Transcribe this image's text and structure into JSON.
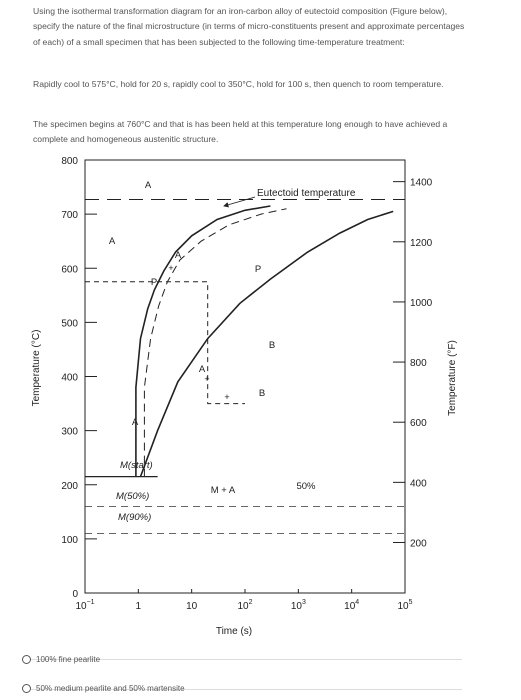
{
  "question": {
    "paragraph1": "Using the isothermal transformation diagram for an iron-carbon alloy of eutectoid composition (Figure below), specify the nature of the final microstructure (in terms of micro-constituents present and approximate percentages of each) of a small specimen that has been subjected to the following time-temperature treatment:",
    "paragraph2": "Rapidly cool to 575°C, hold for 20 s, rapidly cool to 350°C, hold for 100 s, then quench to room temperature.",
    "paragraph3": "The specimen begins at 760°C and that is has been held at this temperature long enough to have achieved a complete and homogeneous austenitic structure."
  },
  "chart_data": {
    "type": "line",
    "xlabel": "Time (s)",
    "ylabel": "Temperature (°C)",
    "y2label": "Temperature (°F)",
    "x_scale": "log",
    "xlim": [
      0.1,
      100000
    ],
    "ylim": [
      0,
      800
    ],
    "x_ticks": [
      0.1,
      1,
      10,
      100,
      1000,
      10000,
      100000
    ],
    "x_tick_labels": [
      {
        "base": "10",
        "exp": "−1"
      },
      {
        "base": "1",
        "exp": ""
      },
      {
        "base": "10",
        "exp": ""
      },
      {
        "base": "10",
        "exp": "2"
      },
      {
        "base": "10",
        "exp": "3"
      },
      {
        "base": "10",
        "exp": "4"
      },
      {
        "base": "10",
        "exp": "5"
      }
    ],
    "y_ticks": [
      0,
      100,
      200,
      300,
      400,
      500,
      600,
      700,
      800
    ],
    "y_tick_labels": [
      "0",
      "100",
      "200",
      "300",
      "400",
      "500",
      "600",
      "700",
      "800"
    ],
    "y2_ticks_f": [
      200,
      400,
      600,
      800,
      1000,
      1200,
      1400
    ],
    "y2_tick_labels": [
      "200",
      "400",
      "600",
      "800",
      "1000",
      "1200",
      "1400"
    ],
    "eutectoid_temperature": 727,
    "curves": {
      "start": [
        [
          0.9,
          215
        ],
        [
          0.9,
          380
        ],
        [
          1.1,
          470
        ],
        [
          1.5,
          525
        ],
        [
          2,
          560
        ],
        [
          3,
          595
        ],
        [
          5,
          630
        ],
        [
          10,
          660
        ],
        [
          30,
          690
        ],
        [
          100,
          707
        ],
        [
          300,
          715
        ]
      ],
      "fifty_percent": [
        [
          1.3,
          215
        ],
        [
          1.3,
          380
        ],
        [
          1.7,
          470
        ],
        [
          2.4,
          530
        ],
        [
          3.5,
          575
        ],
        [
          6,
          615
        ],
        [
          15,
          650
        ],
        [
          50,
          680
        ],
        [
          200,
          700
        ],
        [
          600,
          710
        ]
      ],
      "end": [
        [
          1.1,
          215
        ],
        [
          2.3,
          300
        ],
        [
          5.5,
          390
        ],
        [
          20,
          470
        ],
        [
          80,
          535
        ],
        [
          300,
          580
        ],
        [
          1500,
          630
        ],
        [
          6000,
          665
        ],
        [
          20000,
          690
        ],
        [
          60000,
          705
        ]
      ]
    },
    "martensite_lines": [
      {
        "label": "M(start)",
        "temperature": 215
      },
      {
        "label": "M(50%)",
        "temperature": 160
      },
      {
        "label": "M(90%)",
        "temperature": 110
      }
    ],
    "treatment_path": [
      [
        0.1,
        575
      ],
      [
        20,
        575
      ],
      [
        20,
        350
      ],
      [
        100,
        350
      ]
    ],
    "region_labels": [
      "A",
      "A",
      "P",
      "B",
      "A",
      "M + A",
      "50%",
      "A",
      "P",
      "A",
      "B",
      "Eutectoid temperature"
    ]
  },
  "options": [
    {
      "label": "100% fine pearlite"
    },
    {
      "label": "50% medium pearlite and 50% martensite"
    }
  ]
}
